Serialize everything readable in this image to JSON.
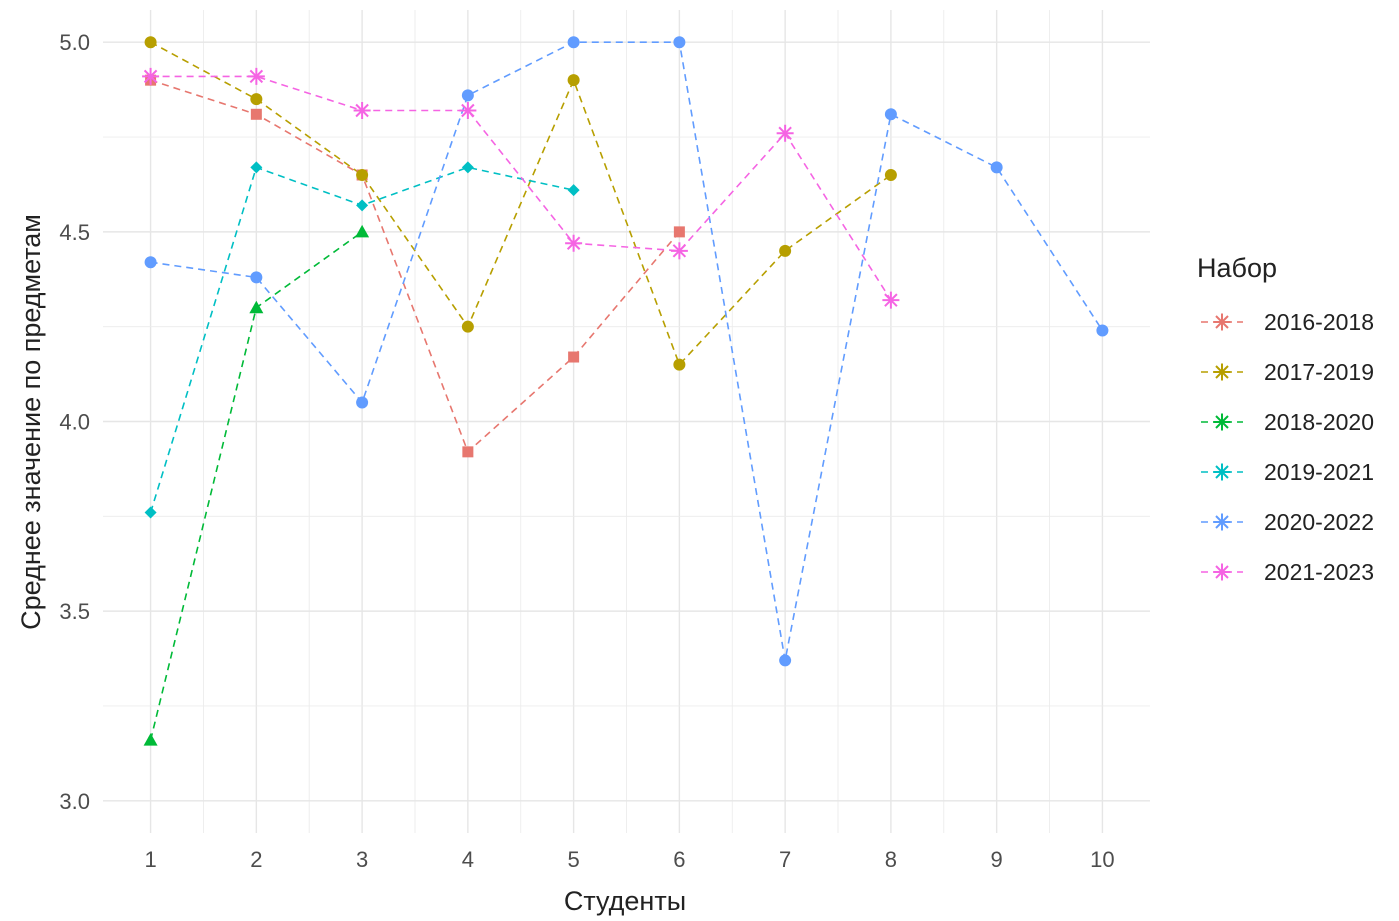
{
  "chart_data": {
    "type": "line",
    "xlabel": "Студенты",
    "ylabel": "Среднее значение по предметам",
    "legend_title": "Набор",
    "legend_position": "right",
    "grid": true,
    "line_style": "dashed",
    "x_ticks": [
      "1",
      "2",
      "3",
      "4",
      "5",
      "6",
      "7",
      "8",
      "9",
      "10"
    ],
    "y_ticks": [
      "3.0",
      "3.5",
      "4.0",
      "4.5",
      "5.0"
    ],
    "xlim": [
      0.55,
      10.45
    ],
    "ylim": [
      2.915,
      5.085
    ],
    "series": [
      {
        "name": "2016-2018",
        "color": "#E7776F",
        "marker": "square",
        "x": [
          1,
          2,
          3,
          4,
          5,
          6
        ],
        "y": [
          4.9,
          4.81,
          4.65,
          3.92,
          4.17,
          4.5
        ]
      },
      {
        "name": "2017-2019",
        "color": "#B79F00",
        "marker": "circle",
        "x": [
          1,
          2,
          3,
          4,
          5,
          6,
          7,
          8
        ],
        "y": [
          5.0,
          4.85,
          4.65,
          4.25,
          4.9,
          4.15,
          4.45,
          4.65
        ]
      },
      {
        "name": "2018-2020",
        "color": "#00BA38",
        "marker": "triangle",
        "x": [
          1,
          2,
          3
        ],
        "y": [
          3.16,
          4.3,
          4.5
        ]
      },
      {
        "name": "2019-2021",
        "color": "#00BFC4",
        "marker": "diamond",
        "x": [
          1,
          2,
          3,
          4,
          5
        ],
        "y": [
          3.76,
          4.67,
          4.57,
          4.67,
          4.61
        ]
      },
      {
        "name": "2020-2022",
        "color": "#619CFF",
        "marker": "circle",
        "x": [
          1,
          2,
          3,
          4,
          5,
          6,
          7,
          8,
          9,
          10
        ],
        "y": [
          4.42,
          4.38,
          4.05,
          4.86,
          5.0,
          5.0,
          3.37,
          4.81,
          4.67,
          4.24
        ]
      },
      {
        "name": "2021-2023",
        "color": "#F564E3",
        "marker": "asterisk",
        "x": [
          1,
          2,
          3,
          4,
          5,
          6,
          7,
          8
        ],
        "y": [
          4.91,
          4.91,
          4.82,
          4.82,
          4.47,
          4.45,
          4.76,
          4.32
        ]
      }
    ]
  }
}
